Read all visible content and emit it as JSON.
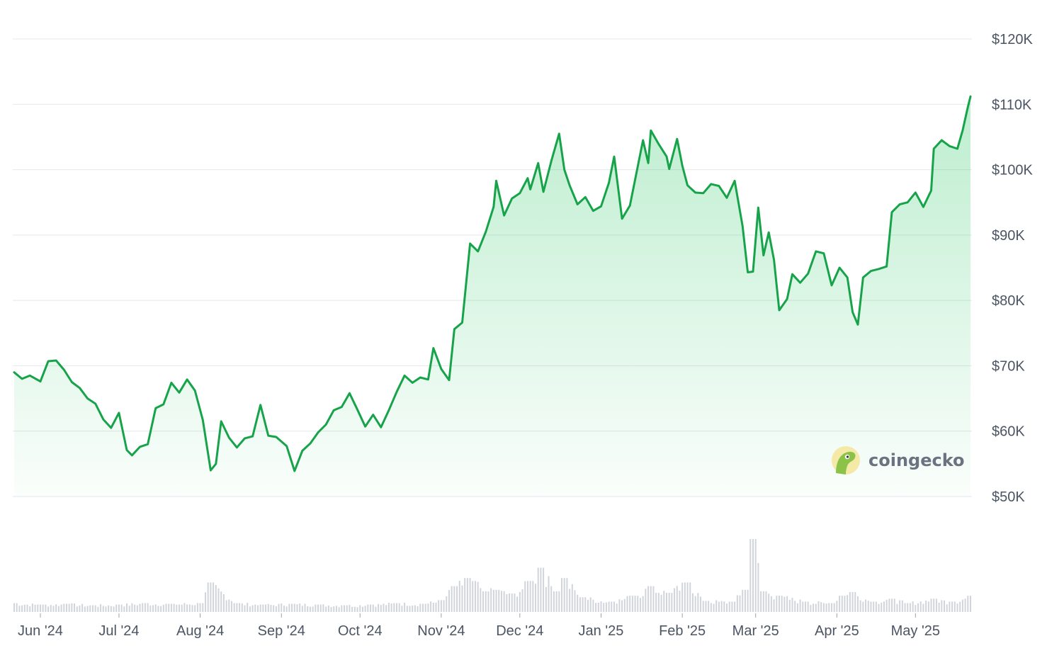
{
  "chart_data": {
    "type": "area",
    "title": "",
    "xlabel": "",
    "ylabel": "",
    "ylim": [
      50000,
      120000
    ],
    "y_ticks": [
      "$50K",
      "$60K",
      "$70K",
      "$80K",
      "$90K",
      "$100K",
      "$110K",
      "$120K"
    ],
    "y_tick_values": [
      50000,
      60000,
      70000,
      80000,
      90000,
      100000,
      110000,
      120000
    ],
    "x_tick_labels": [
      "Jun '24",
      "Jul '24",
      "Aug '24",
      "Sep '24",
      "Oct '24",
      "Nov '24",
      "Dec '24",
      "Jan '25",
      "Feb '25",
      "Mar '25",
      "Apr '25",
      "May '25"
    ],
    "x_tick_dates": [
      "2024-06-01",
      "2024-07-01",
      "2024-08-01",
      "2024-09-01",
      "2024-10-01",
      "2024-11-01",
      "2024-12-01",
      "2025-01-01",
      "2025-02-01",
      "2025-03-01",
      "2025-04-01",
      "2025-05-01"
    ],
    "x_range": [
      "2024-05-22",
      "2025-05-22"
    ],
    "grid": true,
    "y_axis_side": "right",
    "series": [
      {
        "color": "#16a34a",
        "points": [
          [
            "2024-05-22",
            69000
          ],
          [
            "2024-05-25",
            68000
          ],
          [
            "2024-05-28",
            68500
          ],
          [
            "2024-06-01",
            67600
          ],
          [
            "2024-06-04",
            70700
          ],
          [
            "2024-06-07",
            70800
          ],
          [
            "2024-06-10",
            69400
          ],
          [
            "2024-06-13",
            67500
          ],
          [
            "2024-06-16",
            66600
          ],
          [
            "2024-06-19",
            65000
          ],
          [
            "2024-06-22",
            64200
          ],
          [
            "2024-06-25",
            61800
          ],
          [
            "2024-06-28",
            60500
          ],
          [
            "2024-07-01",
            62800
          ],
          [
            "2024-07-04",
            57100
          ],
          [
            "2024-07-06",
            56300
          ],
          [
            "2024-07-09",
            57600
          ],
          [
            "2024-07-12",
            58000
          ],
          [
            "2024-07-15",
            63500
          ],
          [
            "2024-07-18",
            64100
          ],
          [
            "2024-07-21",
            67400
          ],
          [
            "2024-07-24",
            65900
          ],
          [
            "2024-07-27",
            67900
          ],
          [
            "2024-07-30",
            66200
          ],
          [
            "2024-08-02",
            61700
          ],
          [
            "2024-08-05",
            54000
          ],
          [
            "2024-08-07",
            55000
          ],
          [
            "2024-08-09",
            61500
          ],
          [
            "2024-08-12",
            59000
          ],
          [
            "2024-08-15",
            57500
          ],
          [
            "2024-08-18",
            58900
          ],
          [
            "2024-08-21",
            59200
          ],
          [
            "2024-08-24",
            64000
          ],
          [
            "2024-08-27",
            59300
          ],
          [
            "2024-08-30",
            59100
          ],
          [
            "2024-09-03",
            57700
          ],
          [
            "2024-09-06",
            53900
          ],
          [
            "2024-09-09",
            57000
          ],
          [
            "2024-09-12",
            58100
          ],
          [
            "2024-09-15",
            59800
          ],
          [
            "2024-09-18",
            61000
          ],
          [
            "2024-09-21",
            63200
          ],
          [
            "2024-09-24",
            63700
          ],
          [
            "2024-09-27",
            65800
          ],
          [
            "2024-09-30",
            63300
          ],
          [
            "2024-10-03",
            60700
          ],
          [
            "2024-10-06",
            62500
          ],
          [
            "2024-10-09",
            60600
          ],
          [
            "2024-10-12",
            63200
          ],
          [
            "2024-10-15",
            66000
          ],
          [
            "2024-10-18",
            68500
          ],
          [
            "2024-10-21",
            67400
          ],
          [
            "2024-10-24",
            68200
          ],
          [
            "2024-10-27",
            67900
          ],
          [
            "2024-10-29",
            72700
          ],
          [
            "2024-11-01",
            69500
          ],
          [
            "2024-11-04",
            67800
          ],
          [
            "2024-11-06",
            75600
          ],
          [
            "2024-11-09",
            76600
          ],
          [
            "2024-11-12",
            88700
          ],
          [
            "2024-11-15",
            87500
          ],
          [
            "2024-11-18",
            90500
          ],
          [
            "2024-11-21",
            94300
          ],
          [
            "2024-11-22",
            98300
          ],
          [
            "2024-11-25",
            93000
          ],
          [
            "2024-11-28",
            95600
          ],
          [
            "2024-12-01",
            96400
          ],
          [
            "2024-12-04",
            98700
          ],
          [
            "2024-12-05",
            97000
          ],
          [
            "2024-12-08",
            101000
          ],
          [
            "2024-12-10",
            96600
          ],
          [
            "2024-12-13",
            101300
          ],
          [
            "2024-12-16",
            105500
          ],
          [
            "2024-12-18",
            100000
          ],
          [
            "2024-12-20",
            97600
          ],
          [
            "2024-12-23",
            94700
          ],
          [
            "2024-12-26",
            95800
          ],
          [
            "2024-12-29",
            93700
          ],
          [
            "2025-01-01",
            94400
          ],
          [
            "2025-01-04",
            98000
          ],
          [
            "2025-01-06",
            102000
          ],
          [
            "2025-01-09",
            92500
          ],
          [
            "2025-01-12",
            94500
          ],
          [
            "2025-01-15",
            100500
          ],
          [
            "2025-01-17",
            104500
          ],
          [
            "2025-01-19",
            101000
          ],
          [
            "2025-01-20",
            106000
          ],
          [
            "2025-01-23",
            103900
          ],
          [
            "2025-01-26",
            102000
          ],
          [
            "2025-01-27",
            100100
          ],
          [
            "2025-01-30",
            104700
          ],
          [
            "2025-02-01",
            100600
          ],
          [
            "2025-02-03",
            97600
          ],
          [
            "2025-02-06",
            96500
          ],
          [
            "2025-02-09",
            96400
          ],
          [
            "2025-02-12",
            97800
          ],
          [
            "2025-02-15",
            97500
          ],
          [
            "2025-02-18",
            95700
          ],
          [
            "2025-02-21",
            98300
          ],
          [
            "2025-02-24",
            91400
          ],
          [
            "2025-02-26",
            84300
          ],
          [
            "2025-02-28",
            84400
          ],
          [
            "2025-03-02",
            94200
          ],
          [
            "2025-03-04",
            86900
          ],
          [
            "2025-03-06",
            90400
          ],
          [
            "2025-03-08",
            86200
          ],
          [
            "2025-03-10",
            78500
          ],
          [
            "2025-03-13",
            80200
          ],
          [
            "2025-03-15",
            84000
          ],
          [
            "2025-03-18",
            82700
          ],
          [
            "2025-03-21",
            84100
          ],
          [
            "2025-03-24",
            87500
          ],
          [
            "2025-03-27",
            87200
          ],
          [
            "2025-03-30",
            82300
          ],
          [
            "2025-04-02",
            85000
          ],
          [
            "2025-04-05",
            83500
          ],
          [
            "2025-04-07",
            78200
          ],
          [
            "2025-04-09",
            76300
          ],
          [
            "2025-04-11",
            83500
          ],
          [
            "2025-04-14",
            84500
          ],
          [
            "2025-04-17",
            84800
          ],
          [
            "2025-04-20",
            85200
          ],
          [
            "2025-04-22",
            93500
          ],
          [
            "2025-04-25",
            94700
          ],
          [
            "2025-04-28",
            95000
          ],
          [
            "2025-05-01",
            96500
          ],
          [
            "2025-05-04",
            94300
          ],
          [
            "2025-05-07",
            96800
          ],
          [
            "2025-05-08",
            103200
          ],
          [
            "2025-05-11",
            104500
          ],
          [
            "2025-05-14",
            103600
          ],
          [
            "2025-05-17",
            103200
          ],
          [
            "2025-05-19",
            106000
          ],
          [
            "2025-05-21",
            109600
          ],
          [
            "2025-05-22",
            111200
          ]
        ]
      }
    ],
    "volume": {
      "color": "#d1d5db",
      "points": [
        [
          "2024-05-22",
          0.12
        ],
        [
          "2024-06-01",
          0.1
        ],
        [
          "2024-06-11",
          0.11
        ],
        [
          "2024-06-21",
          0.09
        ],
        [
          "2024-07-01",
          0.1
        ],
        [
          "2024-07-11",
          0.12
        ],
        [
          "2024-07-21",
          0.11
        ],
        [
          "2024-08-01",
          0.12
        ],
        [
          "2024-08-05",
          0.4
        ],
        [
          "2024-08-15",
          0.12
        ],
        [
          "2024-08-25",
          0.1
        ],
        [
          "2024-09-05",
          0.11
        ],
        [
          "2024-09-15",
          0.1
        ],
        [
          "2024-09-25",
          0.09
        ],
        [
          "2024-10-05",
          0.1
        ],
        [
          "2024-10-15",
          0.12
        ],
        [
          "2024-10-25",
          0.11
        ],
        [
          "2024-11-01",
          0.16
        ],
        [
          "2024-11-06",
          0.35
        ],
        [
          "2024-11-11",
          0.46
        ],
        [
          "2024-11-13",
          0.42
        ],
        [
          "2024-11-18",
          0.28
        ],
        [
          "2024-11-22",
          0.3
        ],
        [
          "2024-11-28",
          0.25
        ],
        [
          "2024-12-05",
          0.42
        ],
        [
          "2024-12-09",
          0.6
        ],
        [
          "2024-12-15",
          0.28
        ],
        [
          "2024-12-18",
          0.46
        ],
        [
          "2024-12-25",
          0.2
        ],
        [
          "2025-01-05",
          0.14
        ],
        [
          "2025-01-13",
          0.22
        ],
        [
          "2025-01-20",
          0.35
        ],
        [
          "2025-01-27",
          0.26
        ],
        [
          "2025-02-03",
          0.4
        ],
        [
          "2025-02-10",
          0.15
        ],
        [
          "2025-02-20",
          0.14
        ],
        [
          "2025-02-25",
          0.3
        ],
        [
          "2025-02-28",
          0.99
        ],
        [
          "2025-03-04",
          0.28
        ],
        [
          "2025-03-10",
          0.22
        ],
        [
          "2025-03-20",
          0.14
        ],
        [
          "2025-03-30",
          0.12
        ],
        [
          "2025-04-03",
          0.22
        ],
        [
          "2025-04-07",
          0.27
        ],
        [
          "2025-04-15",
          0.14
        ],
        [
          "2025-04-22",
          0.18
        ],
        [
          "2025-04-28",
          0.12
        ],
        [
          "2025-05-08",
          0.18
        ],
        [
          "2025-05-15",
          0.14
        ],
        [
          "2025-05-22",
          0.22
        ]
      ]
    }
  },
  "watermark": {
    "text": "coingecko",
    "icon": "gecko-logo-icon"
  }
}
